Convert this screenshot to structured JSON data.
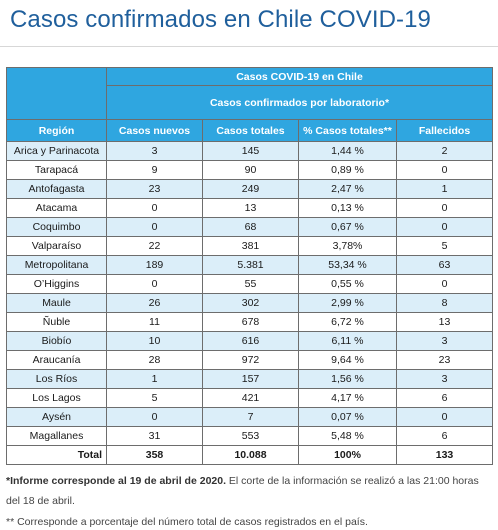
{
  "page": {
    "title": "Casos confirmados en Chile COVID-19"
  },
  "table": {
    "group_header": "Casos COVID-19 en Chile",
    "sub_header": "Casos confirmados por laboratorio*",
    "columns": [
      "Región",
      "Casos nuevos",
      "Casos totales",
      "% Casos totales**",
      "Fallecidos"
    ],
    "rows": [
      {
        "region": "Arica y Parinacota",
        "nuevos": "3",
        "totales": "145",
        "pct": "1,44 %",
        "fallecidos": "2"
      },
      {
        "region": "Tarapacá",
        "nuevos": "9",
        "totales": "90",
        "pct": "0,89 %",
        "fallecidos": "0"
      },
      {
        "region": "Antofagasta",
        "nuevos": "23",
        "totales": "249",
        "pct": "2,47 %",
        "fallecidos": "1"
      },
      {
        "region": "Atacama",
        "nuevos": "0",
        "totales": "13",
        "pct": "0,13 %",
        "fallecidos": "0"
      },
      {
        "region": "Coquimbo",
        "nuevos": "0",
        "totales": "68",
        "pct": "0,67 %",
        "fallecidos": "0"
      },
      {
        "region": "Valparaíso",
        "nuevos": "22",
        "totales": "381",
        "pct": "3,78%",
        "fallecidos": "5"
      },
      {
        "region": "Metropolitana",
        "nuevos": "189",
        "totales": "5.381",
        "pct": "53,34 %",
        "fallecidos": "63"
      },
      {
        "region": "O’Higgins",
        "nuevos": "0",
        "totales": "55",
        "pct": "0,55 %",
        "fallecidos": "0"
      },
      {
        "region": "Maule",
        "nuevos": "26",
        "totales": "302",
        "pct": "2,99 %",
        "fallecidos": "8"
      },
      {
        "region": "Ñuble",
        "nuevos": "11",
        "totales": "678",
        "pct": "6,72 %",
        "fallecidos": "13"
      },
      {
        "region": "Biobío",
        "nuevos": "10",
        "totales": "616",
        "pct": "6,11 %",
        "fallecidos": "3"
      },
      {
        "region": "Araucanía",
        "nuevos": "28",
        "totales": "972",
        "pct": "9,64 %",
        "fallecidos": "23"
      },
      {
        "region": "Los Ríos",
        "nuevos": "1",
        "totales": "157",
        "pct": "1,56 %",
        "fallecidos": "3"
      },
      {
        "region": "Los Lagos",
        "nuevos": "5",
        "totales": "421",
        "pct": "4,17 %",
        "fallecidos": "6"
      },
      {
        "region": "Aysén",
        "nuevos": "0",
        "totales": "7",
        "pct": "0,07 %",
        "fallecidos": "0"
      },
      {
        "region": "Magallanes",
        "nuevos": "31",
        "totales": "553",
        "pct": "5,48 %",
        "fallecidos": "6"
      }
    ],
    "total": {
      "label": "Total",
      "nuevos": "358",
      "totales": "10.088",
      "pct": "100%",
      "fallecidos": "133"
    }
  },
  "footnotes": {
    "note1_bold": "*Informe corresponde al 19 de abril de 2020.",
    "note1_rest": " El corte de la información se realizó a las 21:00 horas del 18 de abril.",
    "note2": "** Corresponde a porcentaje del número total de casos registrados en el país."
  },
  "colors": {
    "title": "#1f5f9c",
    "header_bg": "#2fa6e0",
    "row_alt_bg": "#dbeef9"
  }
}
